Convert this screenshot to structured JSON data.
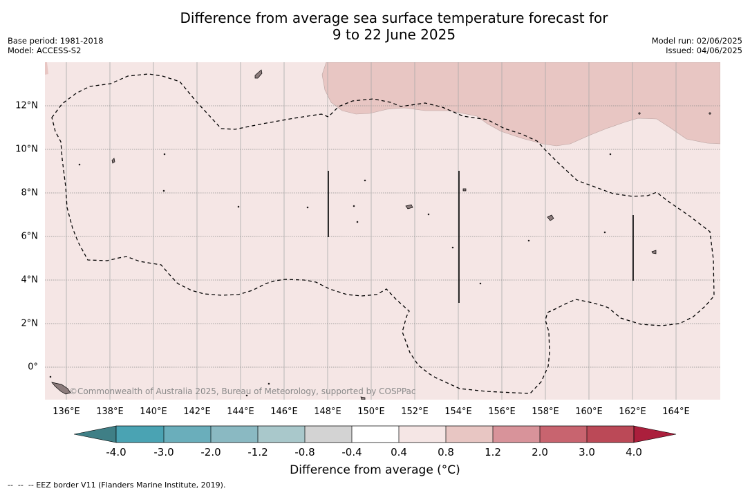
{
  "title": {
    "line1": "Difference from average sea surface temperature forecast for",
    "line2": "9 to 22 June 2025"
  },
  "meta_left": {
    "base_period": "Base period: 1981-2018",
    "model": "Model: ACCESS-S2"
  },
  "meta_right": {
    "model_run": "Model run: 02/06/2025",
    "issued": "Issued: 04/06/2025"
  },
  "map": {
    "background_color": "#f5e6e5",
    "warm_region_color": "#e8c6c3",
    "lat_labels": [
      "12°N",
      "10°N",
      "8°N",
      "6°N",
      "4°N",
      "2°N",
      "0°"
    ],
    "lon_labels": [
      "136°E",
      "138°E",
      "140°E",
      "142°E",
      "144°E",
      "146°E",
      "148°E",
      "150°E",
      "152°E",
      "154°E",
      "156°E",
      "158°E",
      "160°E",
      "162°E",
      "164°E"
    ],
    "credit": "©Commonwealth of Australia 2025, Bureau of Meteorology, supported by COSPPac"
  },
  "colorbar": {
    "labels": [
      "-4.0",
      "-3.0",
      "-2.0",
      "-1.2",
      "-0.8",
      "-0.4",
      "0.4",
      "0.8",
      "1.2",
      "2.0",
      "3.0",
      "4.0"
    ],
    "colors": [
      "#3f7f86",
      "#4aa3b3",
      "#6aaebb",
      "#8ab9c2",
      "#a9c8cb",
      "#d3d3d3",
      "#ffffff",
      "#f5e6e5",
      "#e8c6c3",
      "#d8939a",
      "#c8646f",
      "#bb4957",
      "#ab1f3c"
    ],
    "title": "Difference from average (°C)"
  },
  "footer": "--  --  -- EEZ border V11 (Flanders Marine Institute, 2019)."
}
